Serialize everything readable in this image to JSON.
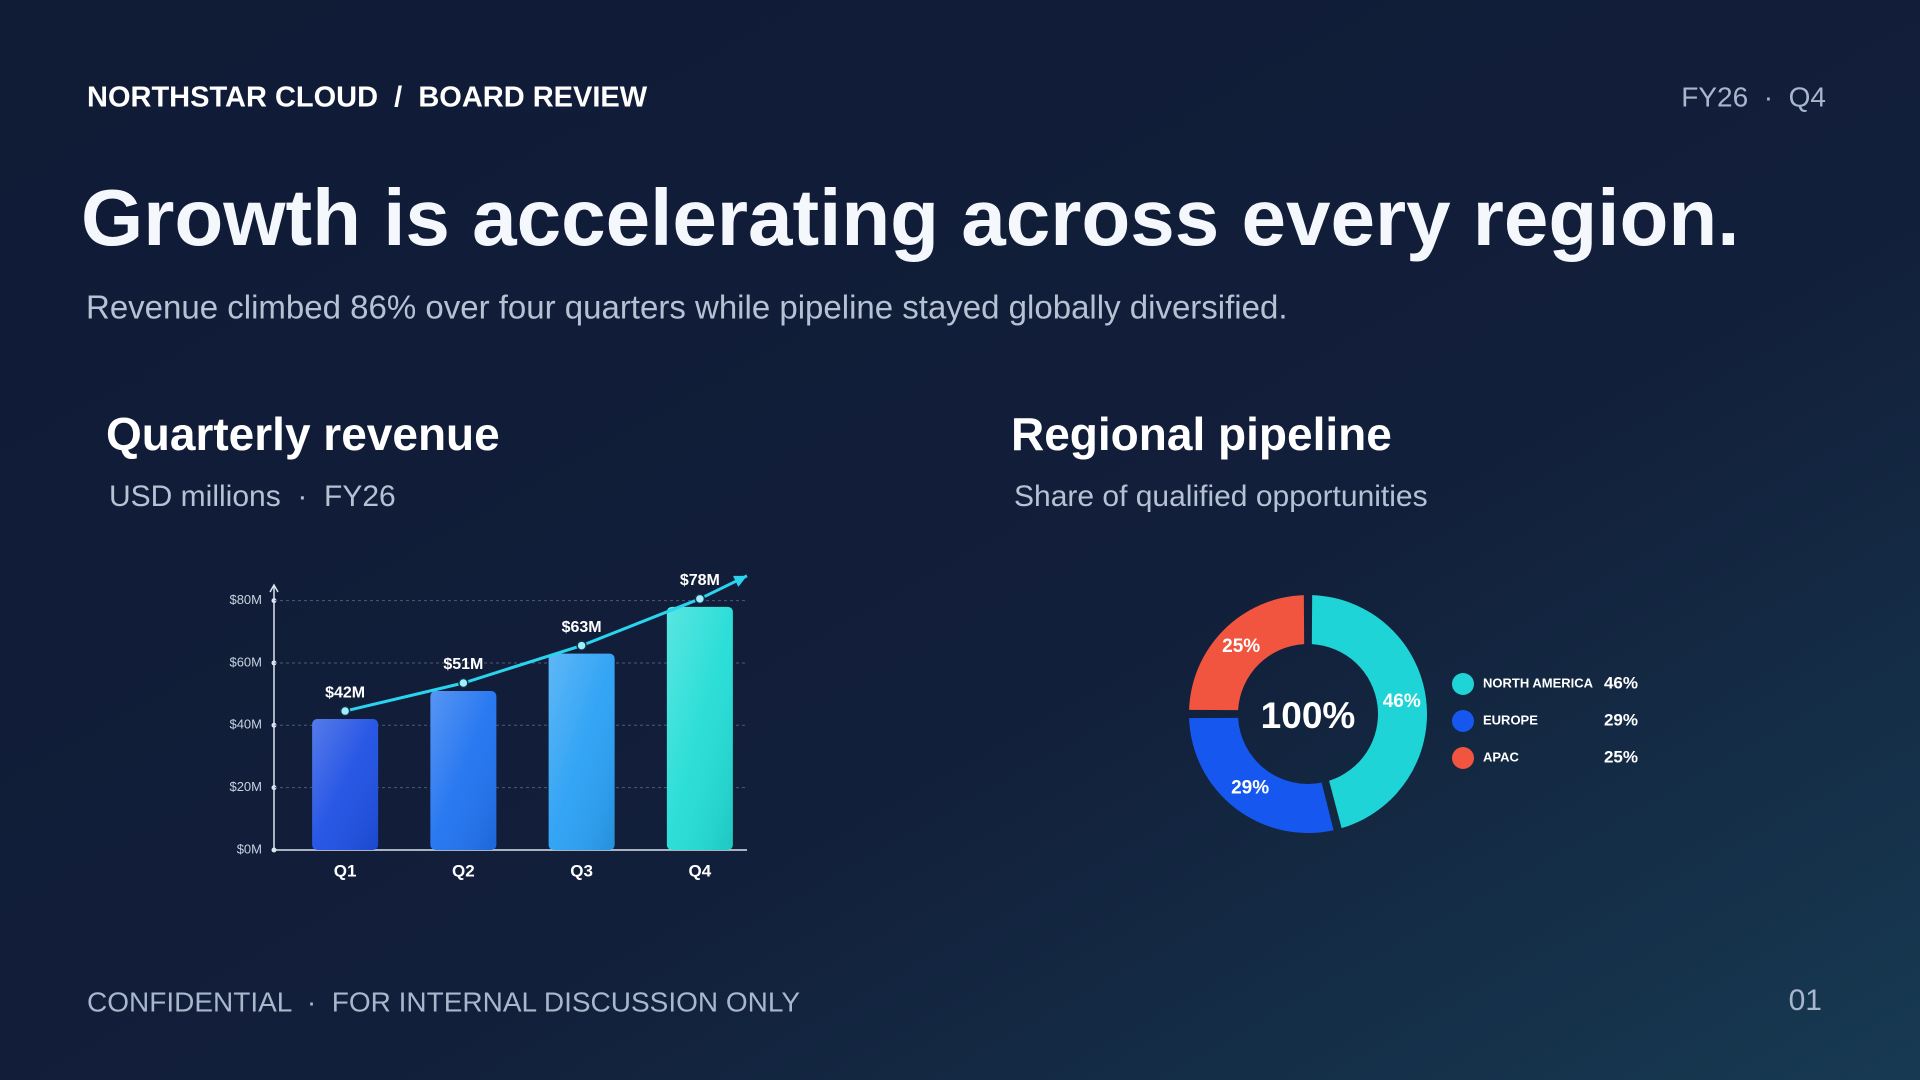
{
  "header": {
    "brand": "NORTHSTAR CLOUD  /  BOARD REVIEW",
    "period": "FY26  ·  Q4"
  },
  "title": "Growth is accelerating across every region.",
  "subtitle": "Revenue climbed 86% over four quarters while pipeline stayed globally diversified.",
  "chart_data": [
    {
      "type": "bar",
      "title": "Quarterly revenue",
      "subtitle": "USD millions  ·  FY26",
      "categories": [
        "Q1",
        "Q2",
        "Q3",
        "Q4"
      ],
      "values": [
        42,
        51,
        63,
        78
      ],
      "value_labels": [
        "$42M",
        "$51M",
        "$63M",
        "$78M"
      ],
      "colors": [
        "#1d4fe3",
        "#1f72f0",
        "#29a0f4",
        "#22ddd6"
      ],
      "ylim": [
        0,
        85
      ],
      "yticks": [
        {
          "value": 0,
          "label": "$0M"
        },
        {
          "value": 20,
          "label": "$20M"
        },
        {
          "value": 40,
          "label": "$40M"
        },
        {
          "value": 60,
          "label": "$60M"
        },
        {
          "value": 80,
          "label": "$80M"
        }
      ],
      "grid": true,
      "trend_line": true,
      "trend_color": "#2ad4ee"
    },
    {
      "type": "pie",
      "title": "Regional pipeline",
      "subtitle": "Share of qualified opportunities",
      "categories": [
        "NORTH AMERICA",
        "EUROPE",
        "APAC"
      ],
      "values": [
        46,
        29,
        25
      ],
      "value_labels": [
        "46%",
        "29%",
        "25%"
      ],
      "colors": [
        "#1fd4d6",
        "#1658ef",
        "#f2553f"
      ],
      "center_value": 100,
      "center_label": "100%",
      "legend": "right"
    }
  ],
  "footer": {
    "note": "CONFIDENTIAL  ·  FOR INTERNAL DISCUSSION ONLY",
    "page": "01"
  }
}
